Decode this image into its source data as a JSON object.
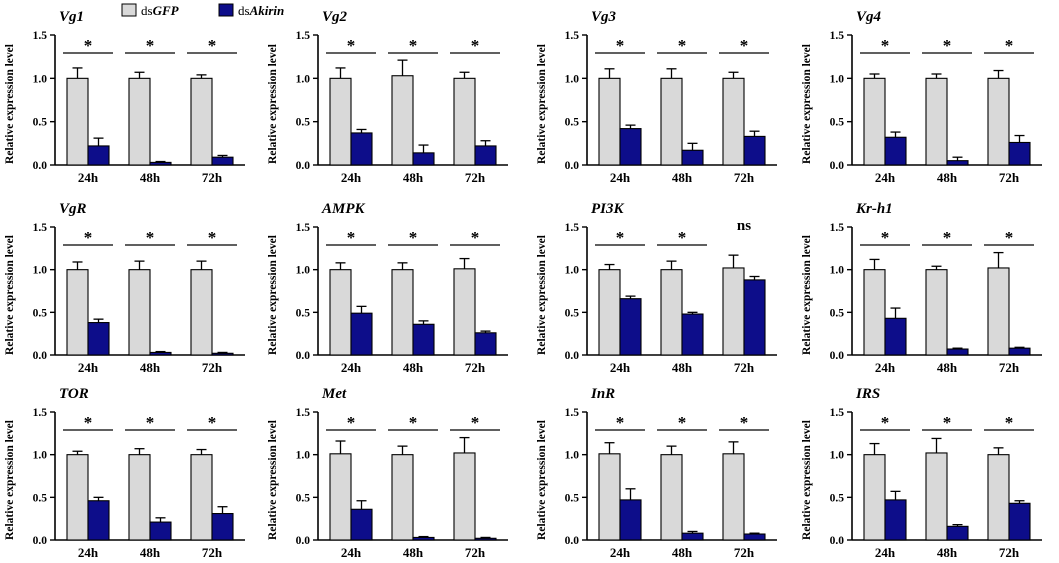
{
  "legend": {
    "gfp_prefix": "ds",
    "gfp_name": "GFP",
    "akirin_prefix": "ds",
    "akirin_name": "Akirin"
  },
  "colors": {
    "gfp": "#d9d9d9",
    "akirin": "#0d0d8a",
    "axis": "#000000"
  },
  "chart_data": [
    {
      "type": "bar",
      "title": "Vg1",
      "ylabel": "Relative expression level",
      "ylim": [
        0,
        1.5
      ],
      "yticks": [
        0.0,
        0.5,
        1.0,
        1.5
      ],
      "yticklabels": [
        "0.0",
        "0.5",
        "1.0",
        "1.5"
      ],
      "categories": [
        "24h",
        "48h",
        "72h"
      ],
      "series": [
        {
          "name": "dsGFP",
          "values": [
            1.0,
            1.0,
            1.0
          ],
          "errors": [
            0.12,
            0.07,
            0.04
          ]
        },
        {
          "name": "dsAkirin",
          "values": [
            0.22,
            0.03,
            0.09
          ],
          "errors": [
            0.09,
            0.01,
            0.02
          ]
        }
      ],
      "significance": [
        "*",
        "*",
        "*"
      ]
    },
    {
      "type": "bar",
      "title": "Vg2",
      "ylabel": "Relative expression level",
      "ylim": [
        0,
        1.5
      ],
      "yticks": [
        0.0,
        0.5,
        1.0,
        1.5
      ],
      "yticklabels": [
        "0.0",
        "0.5",
        "1.0",
        "1.5"
      ],
      "categories": [
        "24h",
        "48h",
        "72h"
      ],
      "series": [
        {
          "name": "dsGFP",
          "values": [
            1.0,
            1.03,
            1.0
          ],
          "errors": [
            0.12,
            0.18,
            0.07
          ]
        },
        {
          "name": "dsAkirin",
          "values": [
            0.37,
            0.14,
            0.22
          ],
          "errors": [
            0.04,
            0.09,
            0.06
          ]
        }
      ],
      "significance": [
        "*",
        "*",
        "*"
      ]
    },
    {
      "type": "bar",
      "title": "Vg3",
      "ylabel": "Relative expression level",
      "ylim": [
        0,
        1.5
      ],
      "yticks": [
        0.0,
        0.5,
        1.0,
        1.5
      ],
      "yticklabels": [
        "0.0",
        "0.5",
        "1.0",
        "1.5"
      ],
      "categories": [
        "24h",
        "48h",
        "72h"
      ],
      "series": [
        {
          "name": "dsGFP",
          "values": [
            1.0,
            1.0,
            1.0
          ],
          "errors": [
            0.11,
            0.11,
            0.07
          ]
        },
        {
          "name": "dsAkirin",
          "values": [
            0.42,
            0.17,
            0.33
          ],
          "errors": [
            0.04,
            0.08,
            0.06
          ]
        }
      ],
      "significance": [
        "*",
        "*",
        "*"
      ]
    },
    {
      "type": "bar",
      "title": "Vg4",
      "ylabel": "Relative expression level",
      "ylim": [
        0,
        1.5
      ],
      "yticks": [
        0.0,
        0.5,
        1.0,
        1.5
      ],
      "yticklabels": [
        "0.0",
        "0.5",
        "1.0",
        "1.5"
      ],
      "categories": [
        "24h",
        "48h",
        "72h"
      ],
      "series": [
        {
          "name": "dsGFP",
          "values": [
            1.0,
            1.0,
            1.0
          ],
          "errors": [
            0.05,
            0.05,
            0.09
          ]
        },
        {
          "name": "dsAkirin",
          "values": [
            0.32,
            0.05,
            0.26
          ],
          "errors": [
            0.06,
            0.04,
            0.08
          ]
        }
      ],
      "significance": [
        "*",
        "*",
        "*"
      ]
    },
    {
      "type": "bar",
      "title": "VgR",
      "ylabel": "Relative expression level",
      "ylim": [
        0,
        1.5
      ],
      "yticks": [
        0.0,
        0.5,
        1.0,
        1.5
      ],
      "yticklabels": [
        "0.0",
        "0.5",
        "1.0",
        "1.5"
      ],
      "categories": [
        "24h",
        "48h",
        "72h"
      ],
      "series": [
        {
          "name": "dsGFP",
          "values": [
            1.0,
            1.0,
            1.0
          ],
          "errors": [
            0.09,
            0.1,
            0.1
          ]
        },
        {
          "name": "dsAkirin",
          "values": [
            0.38,
            0.03,
            0.02
          ],
          "errors": [
            0.04,
            0.01,
            0.01
          ]
        }
      ],
      "significance": [
        "*",
        "*",
        "*"
      ]
    },
    {
      "type": "bar",
      "title": "AMPK",
      "ylabel": "Relative expression level",
      "ylim": [
        0,
        1.5
      ],
      "yticks": [
        0.0,
        0.5,
        1.0,
        1.5
      ],
      "yticklabels": [
        "0.0",
        "0.5",
        "1.0",
        "1.5"
      ],
      "categories": [
        "24h",
        "48h",
        "72h"
      ],
      "series": [
        {
          "name": "dsGFP",
          "values": [
            1.0,
            1.0,
            1.01
          ],
          "errors": [
            0.08,
            0.08,
            0.12
          ]
        },
        {
          "name": "dsAkirin",
          "values": [
            0.49,
            0.36,
            0.26
          ],
          "errors": [
            0.08,
            0.04,
            0.02
          ]
        }
      ],
      "significance": [
        "*",
        "*",
        "*"
      ]
    },
    {
      "type": "bar",
      "title": "PI3K",
      "ylabel": "Relative expression level",
      "ylim": [
        0,
        1.5
      ],
      "yticks": [
        0.0,
        0.5,
        1.0,
        1.5
      ],
      "yticklabels": [
        "0.0",
        "0.5",
        "1.0",
        "1.5"
      ],
      "categories": [
        "24h",
        "48h",
        "72h"
      ],
      "series": [
        {
          "name": "dsGFP",
          "values": [
            1.0,
            1.0,
            1.02
          ],
          "errors": [
            0.06,
            0.1,
            0.15
          ]
        },
        {
          "name": "dsAkirin",
          "values": [
            0.66,
            0.48,
            0.88
          ],
          "errors": [
            0.03,
            0.02,
            0.04
          ]
        }
      ],
      "significance": [
        "*",
        "*",
        "ns"
      ]
    },
    {
      "type": "bar",
      "title": "Kr-h1",
      "ylabel": "Relative expression level",
      "ylim": [
        0,
        1.5
      ],
      "yticks": [
        0.0,
        0.5,
        1.0,
        1.5
      ],
      "yticklabels": [
        "0.0",
        "0.5",
        "1.0",
        "1.5"
      ],
      "categories": [
        "24h",
        "48h",
        "72h"
      ],
      "series": [
        {
          "name": "dsGFP",
          "values": [
            1.0,
            1.0,
            1.02
          ],
          "errors": [
            0.12,
            0.04,
            0.18
          ]
        },
        {
          "name": "dsAkirin",
          "values": [
            0.43,
            0.07,
            0.08
          ],
          "errors": [
            0.12,
            0.01,
            0.01
          ]
        }
      ],
      "significance": [
        "*",
        "*",
        "*"
      ]
    },
    {
      "type": "bar",
      "title": "TOR",
      "ylabel": "Relative expression level",
      "ylim": [
        0,
        1.5
      ],
      "yticks": [
        0.0,
        0.5,
        1.0,
        1.5
      ],
      "yticklabels": [
        "0.0",
        "0.5",
        "1.0",
        "1.5"
      ],
      "categories": [
        "24h",
        "48h",
        "72h"
      ],
      "series": [
        {
          "name": "dsGFP",
          "values": [
            1.0,
            1.0,
            1.0
          ],
          "errors": [
            0.04,
            0.07,
            0.06
          ]
        },
        {
          "name": "dsAkirin",
          "values": [
            0.46,
            0.21,
            0.31
          ],
          "errors": [
            0.04,
            0.05,
            0.08
          ]
        }
      ],
      "significance": [
        "*",
        "*",
        "*"
      ]
    },
    {
      "type": "bar",
      "title": "Met",
      "ylabel": "Relative expression level",
      "ylim": [
        0,
        1.5
      ],
      "yticks": [
        0.0,
        0.5,
        1.0,
        1.5
      ],
      "yticklabels": [
        "0.0",
        "0.5",
        "1.0",
        "1.5"
      ],
      "categories": [
        "24h",
        "48h",
        "72h"
      ],
      "series": [
        {
          "name": "dsGFP",
          "values": [
            1.01,
            1.0,
            1.02
          ],
          "errors": [
            0.15,
            0.1,
            0.18
          ]
        },
        {
          "name": "dsAkirin",
          "values": [
            0.36,
            0.03,
            0.02
          ],
          "errors": [
            0.1,
            0.01,
            0.01
          ]
        }
      ],
      "significance": [
        "*",
        "*",
        "*"
      ]
    },
    {
      "type": "bar",
      "title": "InR",
      "ylabel": "Relative expression level",
      "ylim": [
        0,
        1.5
      ],
      "yticks": [
        0.0,
        0.5,
        1.0,
        1.5
      ],
      "yticklabels": [
        "0.0",
        "0.5",
        "1.0",
        "1.5"
      ],
      "categories": [
        "24h",
        "48h",
        "72h"
      ],
      "series": [
        {
          "name": "dsGFP",
          "values": [
            1.01,
            1.0,
            1.01
          ],
          "errors": [
            0.13,
            0.1,
            0.14
          ]
        },
        {
          "name": "dsAkirin",
          "values": [
            0.47,
            0.08,
            0.07
          ],
          "errors": [
            0.13,
            0.02,
            0.01
          ]
        }
      ],
      "significance": [
        "*",
        "*",
        "*"
      ]
    },
    {
      "type": "bar",
      "title": "IRS",
      "ylabel": "Relative expression level",
      "ylim": [
        0,
        1.5
      ],
      "yticks": [
        0.0,
        0.5,
        1.0,
        1.5
      ],
      "yticklabels": [
        "0.0",
        "0.5",
        "1.0",
        "1.5"
      ],
      "categories": [
        "24h",
        "48h",
        "72h"
      ],
      "series": [
        {
          "name": "dsGFP",
          "values": [
            1.0,
            1.02,
            1.0
          ],
          "errors": [
            0.13,
            0.17,
            0.08
          ]
        },
        {
          "name": "dsAkirin",
          "values": [
            0.47,
            0.16,
            0.43
          ],
          "errors": [
            0.1,
            0.02,
            0.03
          ]
        }
      ],
      "significance": [
        "*",
        "*",
        "*"
      ]
    }
  ]
}
